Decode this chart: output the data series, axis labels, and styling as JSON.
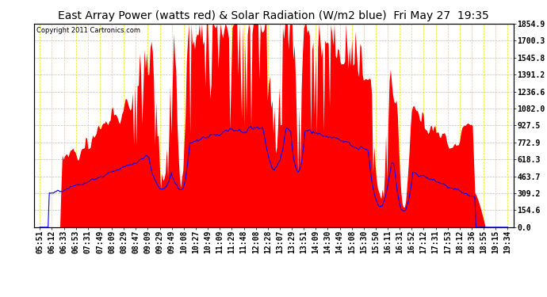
{
  "title": "East Array Power (watts red) & Solar Radiation (W/m2 blue)  Fri May 27  19:35",
  "copyright_text": "Copyright 2011 Cartronics.com",
  "y_ticks": [
    0.0,
    154.6,
    309.2,
    463.7,
    618.3,
    772.9,
    927.5,
    1082.0,
    1236.6,
    1391.2,
    1545.8,
    1700.3,
    1854.9
  ],
  "x_labels": [
    "05:51",
    "06:12",
    "06:33",
    "06:53",
    "07:31",
    "07:49",
    "08:09",
    "08:29",
    "08:47",
    "09:09",
    "09:29",
    "09:49",
    "10:08",
    "10:27",
    "10:49",
    "11:09",
    "11:29",
    "11:48",
    "12:08",
    "12:28",
    "13:07",
    "13:29",
    "13:51",
    "14:09",
    "14:30",
    "14:49",
    "15:08",
    "15:30",
    "15:50",
    "16:11",
    "16:31",
    "16:52",
    "17:12",
    "17:31",
    "17:53",
    "18:12",
    "18:36",
    "18:55",
    "19:15",
    "19:34"
  ],
  "bg_color": "#ffffff",
  "plot_bg_color": "#ffffff",
  "red_fill_color": "#ff0000",
  "blue_line_color": "#0000ff",
  "grid_color": "#c8c8c8",
  "grid_color_minor": "#ffff00",
  "title_fontsize": 10,
  "tick_fontsize": 7,
  "ymax": 1854.9,
  "ymin": 0.0
}
